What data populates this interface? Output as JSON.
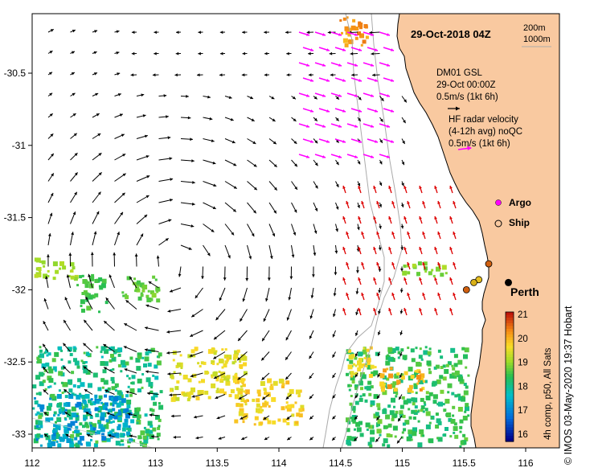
{
  "title": "29-Oct-2018 04Z",
  "depth_contours": [
    "200m",
    "1000m"
  ],
  "model": {
    "name": "DM01 GSL",
    "time": "29-Oct 00:00Z",
    "scale_label": "0.5m/s (1kt 6h)",
    "arrow_color": "#000000"
  },
  "hf_radar": {
    "title": "HF radar velocity",
    "subtitle": "(4-12h avg) noQC",
    "scale_label": "0.5m/s (1kt 6h)",
    "arrow_colors": [
      "#ff00ff",
      "#dd0000"
    ]
  },
  "legend": {
    "argo_label": "Argo",
    "argo_color": "#ff00ff",
    "ship_label": "Ship"
  },
  "city": {
    "name": "Perth",
    "lon": 115.86,
    "lat": -31.95
  },
  "axes": {
    "x_ticks": [
      "112",
      "112.5",
      "113",
      "113.5",
      "114",
      "114.5",
      "115",
      "115.5",
      "116"
    ],
    "y_ticks": [
      "-30.5",
      "-31",
      "-31.5",
      "-32",
      "-32.5",
      "-33"
    ],
    "lon_range": [
      112,
      116.3
    ],
    "lat_range": [
      -33.1,
      -30.1
    ]
  },
  "colorbar": {
    "min": 16,
    "max": 21,
    "ticks": [
      "21",
      "20",
      "19",
      "18",
      "17",
      "16"
    ],
    "label": "4h comp, p50, All Sats"
  },
  "ships": [
    {
      "lon": 115.7,
      "lat": -31.82,
      "color": "#d06010"
    },
    {
      "lon": 115.62,
      "lat": -31.93,
      "color": "#e8c020"
    },
    {
      "lon": 115.58,
      "lat": -31.95,
      "color": "#d8b018"
    },
    {
      "lon": 115.52,
      "lat": -32.0,
      "color": "#d06010"
    }
  ],
  "credit": "© IMOS 03-May-2020 19:37 Hobart",
  "colors": {
    "land": "#f9c9a0",
    "ocean": "#ffffff",
    "contour": "#aaaaaa"
  }
}
